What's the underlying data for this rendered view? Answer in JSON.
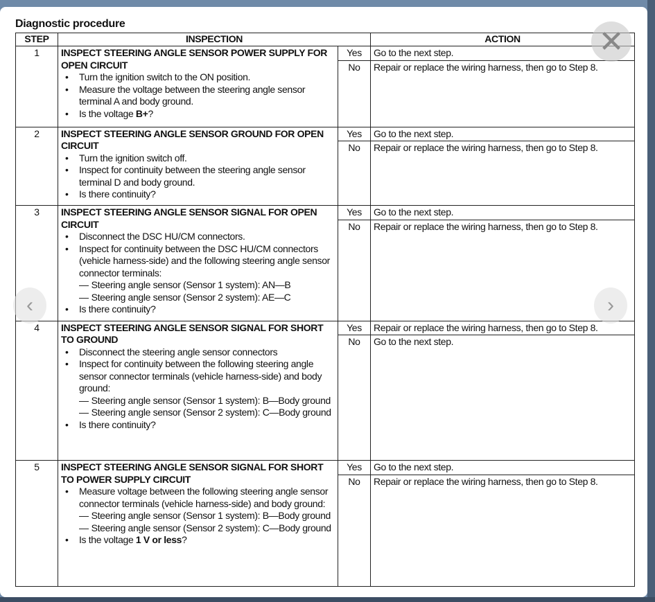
{
  "document": {
    "title": "Diagnostic procedure",
    "headers": {
      "step": "STEP",
      "inspection": "INSPECTION",
      "action": "ACTION"
    },
    "steps": [
      {
        "step": "1",
        "title": "INSPECT STEERING ANGLE SENSOR POWER SUPPLY FOR OPEN CIRCUIT",
        "items": [
          {
            "text": "Turn the ignition switch to the ON position."
          },
          {
            "text": "Measure the voltage between the steering angle sensor terminal A and body ground."
          },
          {
            "text": "Is the voltage ",
            "bold": "B+",
            "after": "?"
          }
        ],
        "yes": {
          "label": "Yes",
          "action": "Go to the next step."
        },
        "no": {
          "label": "No",
          "action": "Repair or replace the wiring harness, then go to Step 8."
        }
      },
      {
        "step": "2",
        "title": "INSPECT STEERING ANGLE SENSOR GROUND FOR OPEN CIRCUIT",
        "items": [
          {
            "text": "Turn the ignition switch off."
          },
          {
            "text": "Inspect for continuity between the steering angle sensor terminal D and body ground."
          },
          {
            "text": "Is there continuity?"
          }
        ],
        "yes": {
          "label": "Yes",
          "action": "Go to the next step."
        },
        "no": {
          "label": "No",
          "action": "Repair or replace the wiring harness, then go to Step 8."
        }
      },
      {
        "step": "3",
        "title": "INSPECT STEERING ANGLE SENSOR SIGNAL FOR OPEN CIRCUIT",
        "items": [
          {
            "text": "Disconnect the DSC HU/CM connectors."
          },
          {
            "text": "Inspect for continuity between the DSC HU/CM connectors (vehicle harness-side) and the following steering angle sensor connector terminals:",
            "subs": [
              "Steering angle sensor (Sensor 1 system): AN—B",
              "Steering angle sensor (Sensor 2 system): AE—C"
            ]
          },
          {
            "text": "Is there continuity?"
          }
        ],
        "yes": {
          "label": "Yes",
          "action": "Go to the next step."
        },
        "no": {
          "label": "No",
          "action": "Repair or replace the wiring harness, then go to Step 8."
        }
      },
      {
        "step": "4",
        "title": "INSPECT STEERING ANGLE SENSOR SIGNAL FOR SHORT TO GROUND",
        "items": [
          {
            "text": "Disconnect the steering angle sensor connectors"
          },
          {
            "text": "Inspect for continuity between the following steering angle sensor connector terminals (vehicle harness-side) and body ground:",
            "subs": [
              "Steering angle sensor (Sensor 1 system): B—Body ground",
              "Steering angle sensor (Sensor 2 system): C—Body ground"
            ]
          },
          {
            "text": "Is there continuity?"
          }
        ],
        "yes": {
          "label": "Yes",
          "action": "Repair or replace the wiring harness, then go to Step 8."
        },
        "no": {
          "label": "No",
          "action": "Go to the next step."
        }
      },
      {
        "step": "5",
        "title": "INSPECT STEERING ANGLE SENSOR SIGNAL FOR SHORT TO POWER SUPPLY CIRCUIT",
        "items": [
          {
            "text": "Measure voltage between the following steering angle sensor connector terminals (vehicle harness-side) and body ground:",
            "subs": [
              "Steering angle sensor (Sensor 1 system): B—Body ground",
              "Steering angle sensor (Sensor 2 system): C—Body ground"
            ]
          },
          {
            "text": "Is the voltage ",
            "bold": "1 V or less",
            "after": "?"
          }
        ],
        "yes": {
          "label": "Yes",
          "action": "Go to the next step."
        },
        "no": {
          "label": "No",
          "action": "Repair or replace the wiring harness, then go to Step 8."
        }
      }
    ]
  },
  "viewer": {
    "close_icon": "close-icon",
    "prev_icon": "chevron-left-icon",
    "next_icon": "chevron-right-icon",
    "close_glyph": "✕",
    "prev_glyph": "‹",
    "next_glyph": "›"
  }
}
